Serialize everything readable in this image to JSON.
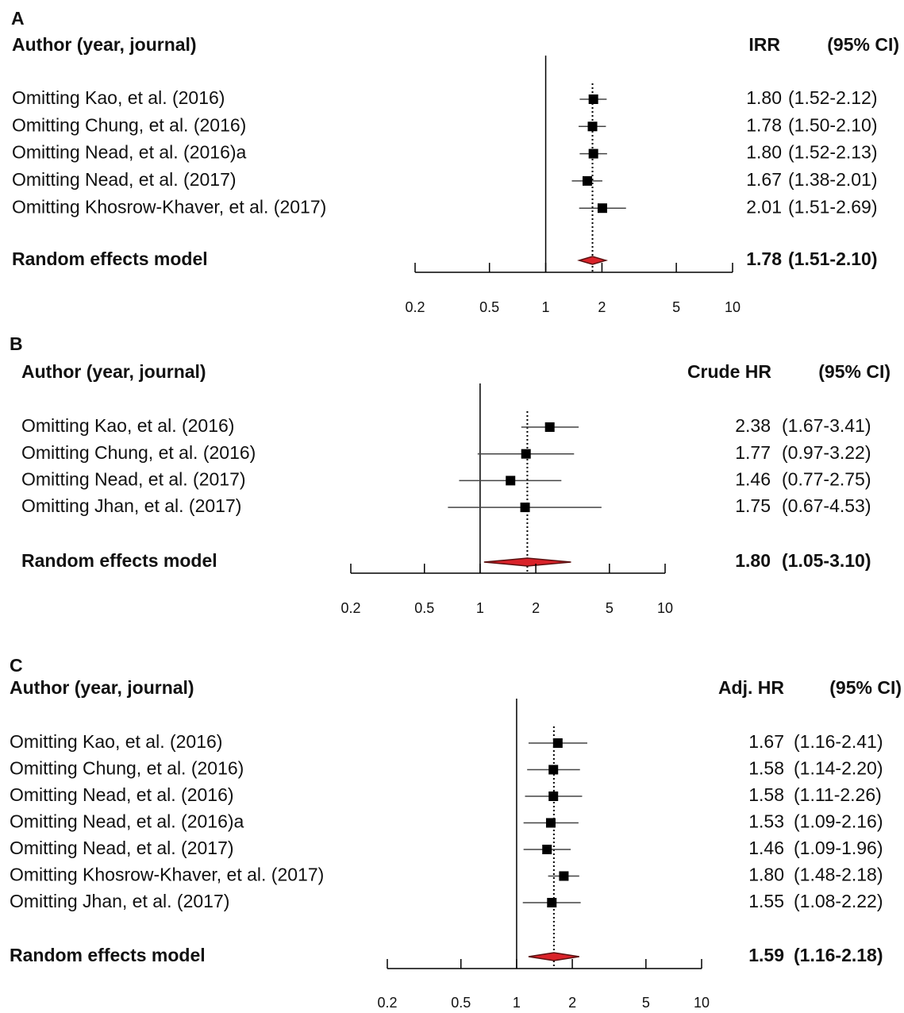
{
  "chart_data": [
    {
      "type": "forest",
      "panel_label": "A",
      "author_header": "Author (year, journal)",
      "effect_header": "IRR",
      "ci_header": "(95% CI)",
      "categories": [
        "Omitting Kao, et al. (2016)",
        "Omitting Chung, et al. (2016)",
        "Omitting Nead, et al. (2016)a",
        "Omitting Nead, et al. (2017)",
        "Omitting Khosrow-Khaver, et al. (2017)"
      ],
      "values": [
        1.8,
        1.78,
        1.8,
        1.67,
        2.01
      ],
      "value_labels": [
        "1.80",
        "1.78",
        "1.80",
        "1.67",
        "2.01"
      ],
      "lower": [
        1.52,
        1.5,
        1.52,
        1.38,
        1.51
      ],
      "upper": [
        2.12,
        2.1,
        2.13,
        2.01,
        2.69
      ],
      "ci_labels": [
        "(1.52-2.12)",
        "(1.50-2.10)",
        "(1.52-2.13)",
        "(1.38-2.01)",
        "(1.51-2.69)"
      ],
      "summary": {
        "name": "Random effects model",
        "value": 1.78,
        "value_label": "1.78",
        "lower": 1.51,
        "upper": 2.1,
        "ci_label": "(1.51-2.10)"
      },
      "xlim": [
        0.2,
        10
      ],
      "xticks": [
        0.2,
        0.5,
        1,
        2,
        5,
        10
      ],
      "log_x": true,
      "ref_line": 1,
      "color": "#000000",
      "summary_color": "#d9232a"
    },
    {
      "type": "forest",
      "panel_label": "B",
      "author_header": "Author (year, journal)",
      "effect_header": "Crude HR",
      "ci_header": "(95% CI)",
      "categories": [
        "Omitting Kao, et al. (2016)",
        "Omitting Chung, et al. (2016)",
        "Omitting Nead, et al. (2017)",
        "Omitting Jhan, et al. (2017)"
      ],
      "values": [
        2.38,
        1.77,
        1.46,
        1.75
      ],
      "value_labels": [
        "2.38",
        "1.77",
        "1.46",
        "1.75"
      ],
      "lower": [
        1.67,
        0.97,
        0.77,
        0.67
      ],
      "upper": [
        3.41,
        3.22,
        2.75,
        4.53
      ],
      "ci_labels": [
        "(1.67-3.41)",
        "(0.97-3.22)",
        "(0.77-2.75)",
        "(0.67-4.53)"
      ],
      "summary": {
        "name": "Random effects model",
        "value": 1.8,
        "value_label": "1.80",
        "lower": 1.05,
        "upper": 3.1,
        "ci_label": "(1.05-3.10)"
      },
      "xlim": [
        0.2,
        10
      ],
      "xticks": [
        0.2,
        0.5,
        1,
        2,
        5,
        10
      ],
      "log_x": true,
      "ref_line": 1,
      "color": "#000000",
      "summary_color": "#d9232a"
    },
    {
      "type": "forest",
      "panel_label": "C",
      "author_header": "Author (year, journal)",
      "effect_header": "Adj. HR",
      "ci_header": "(95% CI)",
      "categories": [
        "Omitting Kao, et al. (2016)",
        "Omitting Chung, et al. (2016)",
        "Omitting Nead, et al. (2016)",
        "Omitting Nead, et al. (2016)a",
        "Omitting Nead, et al. (2017)",
        "Omitting Khosrow-Khaver, et al. (2017)",
        "Omitting Jhan, et al. (2017)"
      ],
      "values": [
        1.67,
        1.58,
        1.58,
        1.53,
        1.46,
        1.8,
        1.55
      ],
      "value_labels": [
        "1.67",
        "1.58",
        "1.58",
        "1.53",
        "1.46",
        "1.80",
        "1.55"
      ],
      "lower": [
        1.16,
        1.14,
        1.11,
        1.09,
        1.09,
        1.48,
        1.08
      ],
      "upper": [
        2.41,
        2.2,
        2.26,
        2.16,
        1.96,
        2.18,
        2.22
      ],
      "ci_labels": [
        "(1.16-2.41)",
        "(1.14-2.20)",
        "(1.11-2.26)",
        "(1.09-2.16)",
        "(1.09-1.96)",
        "(1.48-2.18)",
        "(1.08-2.22)"
      ],
      "summary": {
        "name": "Random effects model",
        "value": 1.59,
        "value_label": "1.59",
        "lower": 1.16,
        "upper": 2.18,
        "ci_label": "(1.16-2.18)"
      },
      "xlim": [
        0.2,
        10
      ],
      "xticks": [
        0.2,
        0.5,
        1,
        2,
        5,
        10
      ],
      "log_x": true,
      "ref_line": 1,
      "color": "#000000",
      "summary_color": "#d9232a"
    }
  ]
}
